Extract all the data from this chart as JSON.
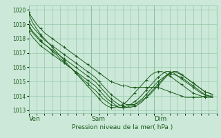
{
  "bg_color": "#cce8d8",
  "grid_color": "#88c4a0",
  "line_color": "#1a5c1a",
  "ylabel_ticks": [
    1013,
    1014,
    1015,
    1016,
    1017,
    1018,
    1019,
    1020
  ],
  "ylim": [
    1012.8,
    1020.3
  ],
  "xlim": [
    0,
    48
  ],
  "xlabel": "Pression niveau de la mer( hPa )",
  "series": [
    [
      1019.8,
      1019.4,
      1019.0,
      1018.7,
      1018.4,
      1018.2,
      1018.0,
      1017.8,
      1017.6,
      1017.4,
      1017.2,
      1017.0,
      1016.8,
      1016.6,
      1016.4,
      1016.2,
      1016.0,
      1015.8,
      1015.6,
      1015.4,
      1015.2,
      1015.0,
      1014.9,
      1014.8,
      1014.7,
      1014.7,
      1014.6,
      1014.6,
      1014.6,
      1014.6,
      1014.6,
      1014.6,
      1014.6,
      1014.6,
      1014.5,
      1014.4,
      1014.3,
      1014.2,
      1014.1,
      1014.0,
      1013.9,
      1013.9,
      1013.9,
      1013.9,
      1013.9,
      1014.0,
      1014.0,
      1014.0
    ],
    [
      1019.2,
      1018.8,
      1018.5,
      1018.2,
      1017.9,
      1017.7,
      1017.5,
      1017.3,
      1017.1,
      1016.9,
      1016.7,
      1016.5,
      1016.3,
      1016.1,
      1015.9,
      1015.7,
      1015.5,
      1015.3,
      1015.0,
      1014.7,
      1014.4,
      1014.1,
      1013.9,
      1013.7,
      1013.5,
      1013.4,
      1013.4,
      1013.4,
      1013.5,
      1013.7,
      1013.9,
      1014.1,
      1014.4,
      1014.7,
      1015.0,
      1015.3,
      1015.6,
      1015.7,
      1015.7,
      1015.5,
      1015.3,
      1015.1,
      1014.9,
      1014.7,
      1014.5,
      1014.3,
      1014.2,
      1014.1
    ],
    [
      1018.8,
      1018.4,
      1018.1,
      1017.8,
      1017.6,
      1017.4,
      1017.2,
      1017.0,
      1016.8,
      1016.6,
      1016.4,
      1016.2,
      1016.0,
      1015.8,
      1015.6,
      1015.4,
      1015.2,
      1015.0,
      1014.7,
      1014.4,
      1014.1,
      1013.8,
      1013.6,
      1013.4,
      1013.3,
      1013.2,
      1013.2,
      1013.3,
      1013.4,
      1013.6,
      1013.9,
      1014.2,
      1014.5,
      1014.8,
      1015.1,
      1015.4,
      1015.6,
      1015.7,
      1015.6,
      1015.5,
      1015.3,
      1015.1,
      1014.9,
      1014.7,
      1014.5,
      1014.3,
      1014.2,
      1014.1
    ],
    [
      1018.5,
      1018.1,
      1017.8,
      1017.5,
      1017.3,
      1017.1,
      1016.9,
      1016.7,
      1016.5,
      1016.3,
      1016.1,
      1015.9,
      1015.7,
      1015.5,
      1015.3,
      1015.1,
      1014.9,
      1014.7,
      1014.4,
      1014.1,
      1013.8,
      1013.6,
      1013.4,
      1013.2,
      1013.2,
      1013.2,
      1013.3,
      1013.4,
      1013.6,
      1013.8,
      1014.1,
      1014.4,
      1014.7,
      1015.0,
      1015.2,
      1015.4,
      1015.5,
      1015.5,
      1015.4,
      1015.3,
      1015.1,
      1014.9,
      1014.7,
      1014.5,
      1014.3,
      1014.1,
      1014.0,
      1013.9
    ],
    [
      1018.9,
      1018.5,
      1018.2,
      1017.9,
      1017.6,
      1017.4,
      1017.1,
      1016.9,
      1016.6,
      1016.4,
      1016.1,
      1015.9,
      1015.6,
      1015.4,
      1015.1,
      1014.9,
      1014.6,
      1014.4,
      1014.1,
      1013.8,
      1013.6,
      1013.4,
      1013.3,
      1013.2,
      1013.2,
      1013.3,
      1013.4,
      1013.6,
      1013.8,
      1014.1,
      1014.4,
      1014.7,
      1015.0,
      1015.3,
      1015.5,
      1015.7,
      1015.7,
      1015.6,
      1015.4,
      1015.2,
      1015.0,
      1014.8,
      1014.6,
      1014.4,
      1014.2,
      1014.1,
      1014.0,
      1013.9
    ],
    [
      1019.7,
      1019.1,
      1018.7,
      1018.3,
      1018.0,
      1017.7,
      1017.4,
      1017.1,
      1016.8,
      1016.5,
      1016.2,
      1015.9,
      1015.6,
      1015.3,
      1015.0,
      1014.7,
      1014.4,
      1014.1,
      1013.8,
      1013.5,
      1013.3,
      1013.2,
      1013.2,
      1013.3,
      1013.4,
      1013.6,
      1013.9,
      1014.2,
      1014.5,
      1014.8,
      1015.1,
      1015.4,
      1015.6,
      1015.7,
      1015.7,
      1015.6,
      1015.4,
      1015.2,
      1015.0,
      1014.8,
      1014.6,
      1014.4,
      1014.2,
      1014.1,
      1014.0,
      1013.9,
      1013.9,
      1013.9
    ]
  ]
}
